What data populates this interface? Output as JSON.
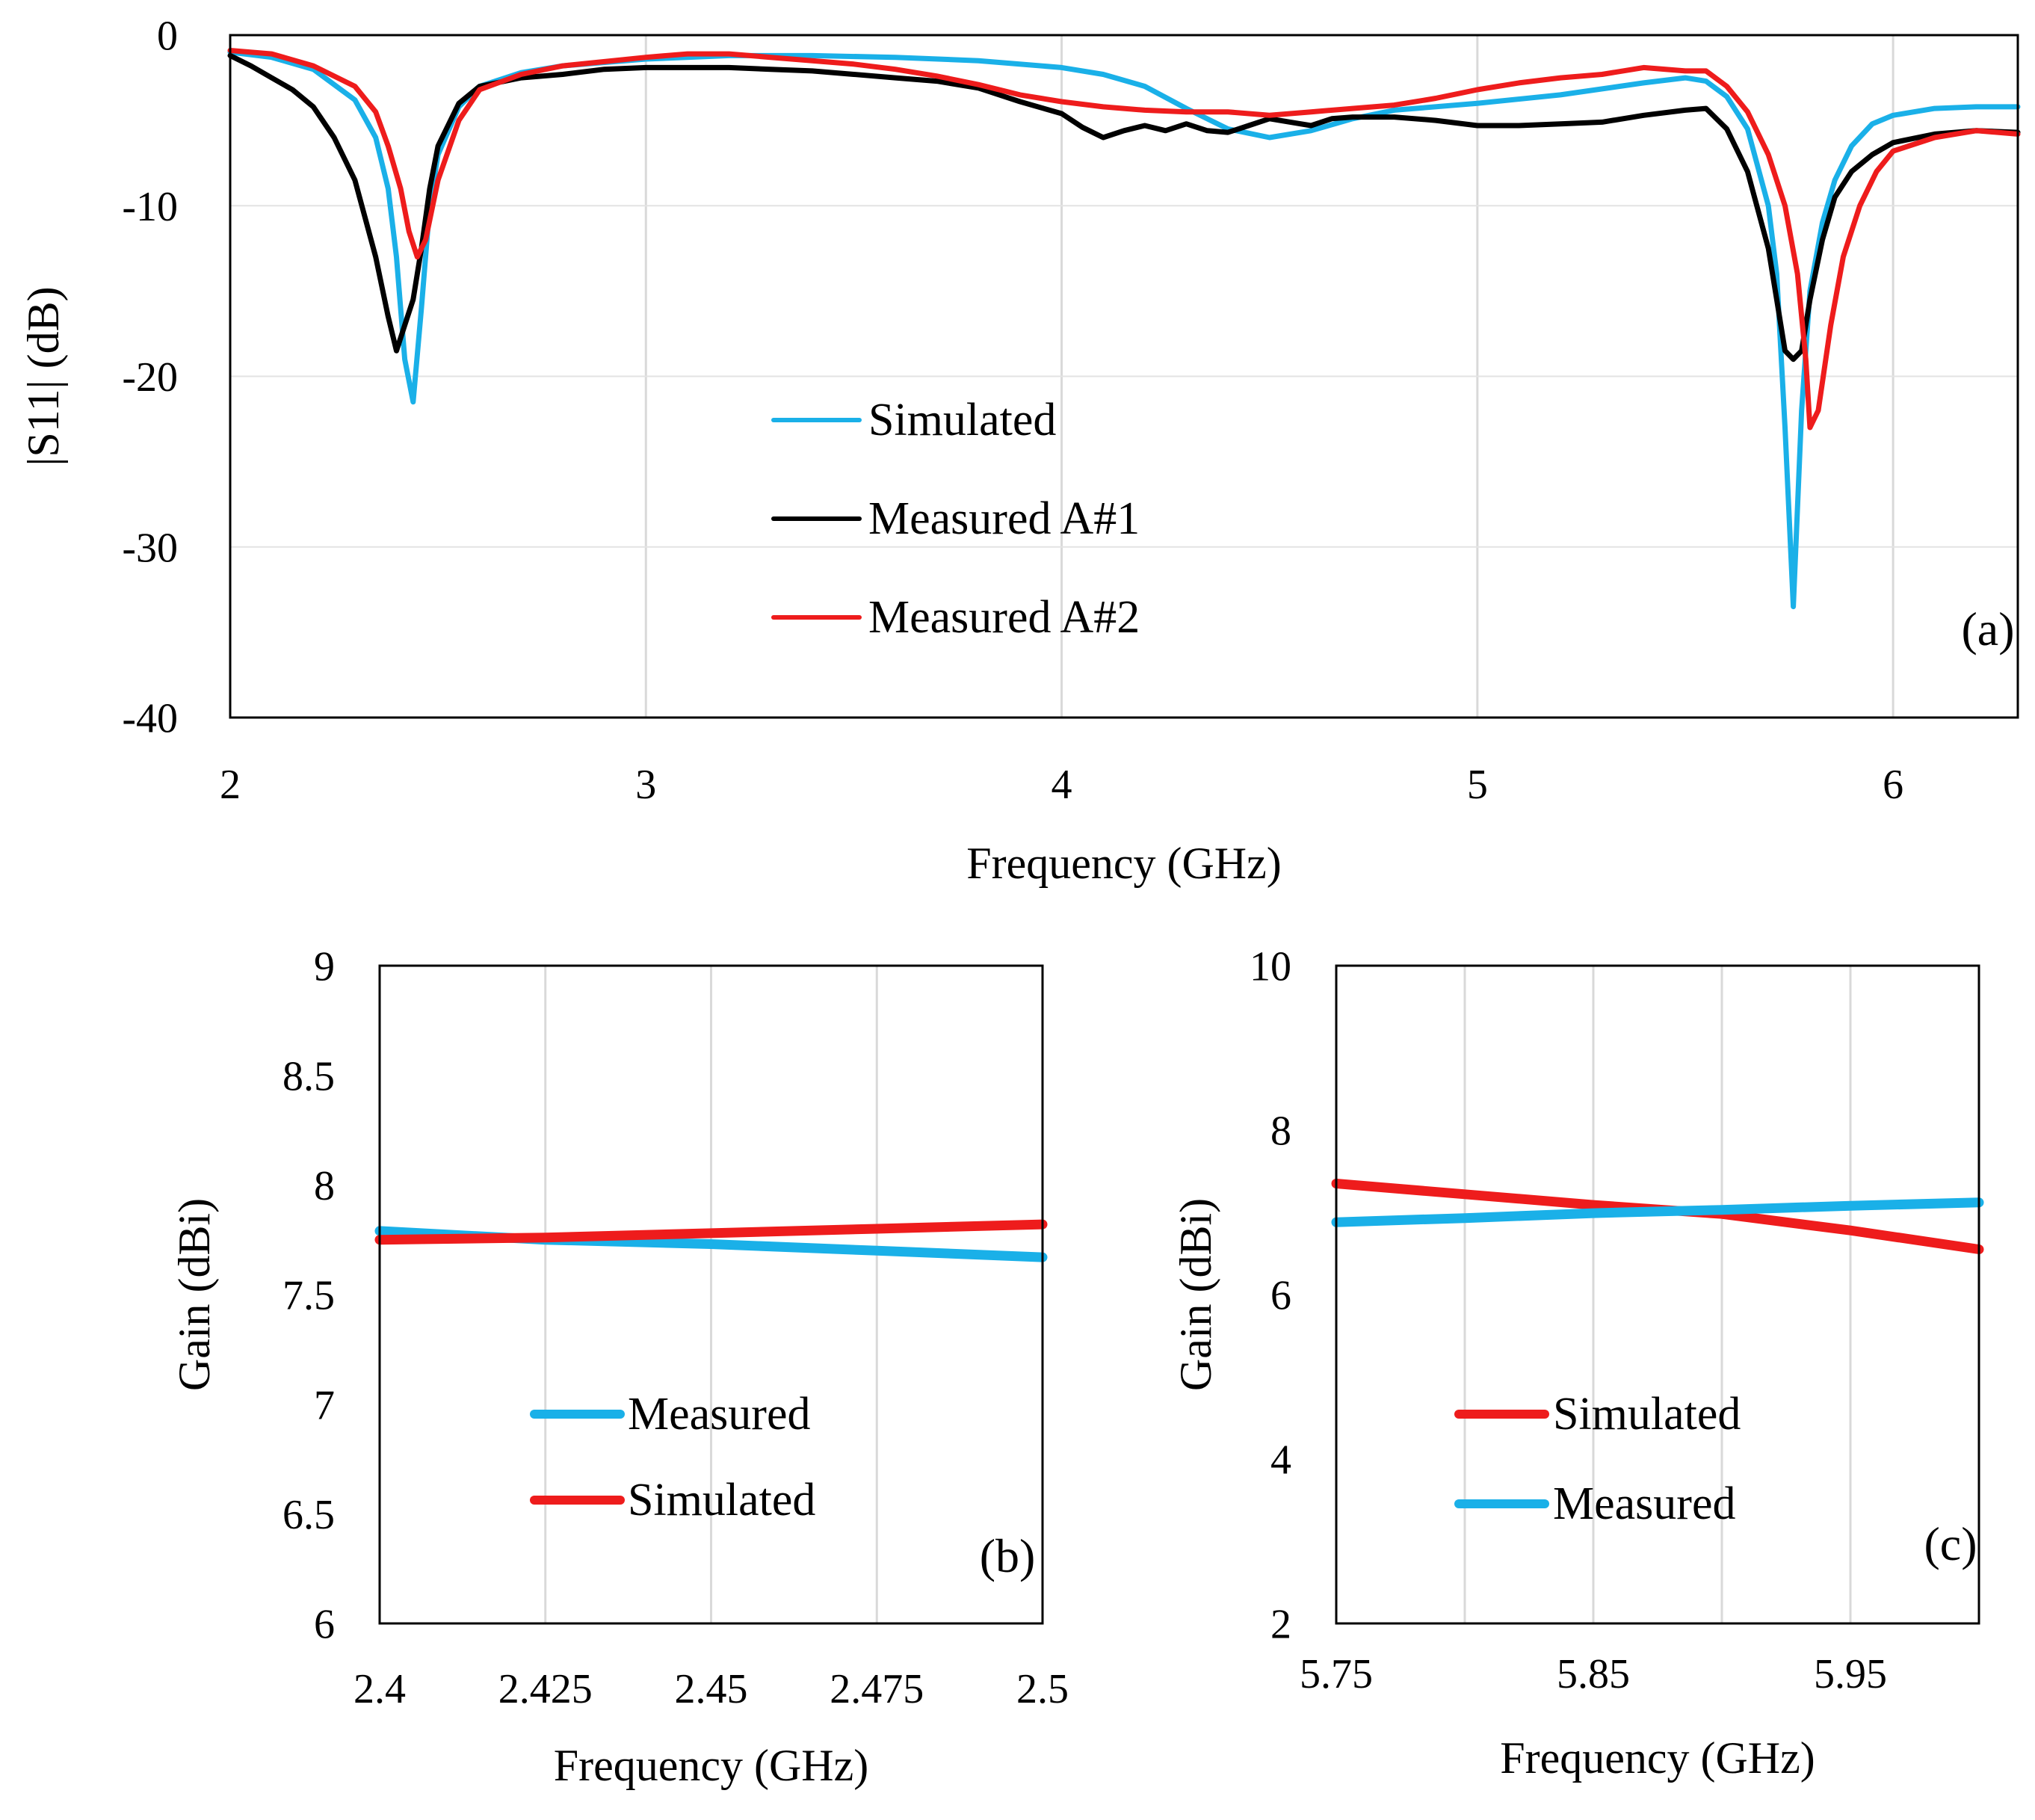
{
  "chart_data": [
    {
      "id": "a",
      "type": "line",
      "panel_label": "(a)",
      "title": "",
      "xlabel": "Frequency (GHz)",
      "ylabel": "|S11| (dB)",
      "xlim": [
        2,
        6.3
      ],
      "ylim": [
        -40,
        0
      ],
      "xticks": [
        2,
        3,
        4,
        5,
        6
      ],
      "yticks": [
        0,
        -10,
        -20,
        -30,
        -40
      ],
      "xtick_labels": [
        "2",
        "3",
        "4",
        "5",
        "6"
      ],
      "ytick_labels": [
        "0",
        "-10",
        "-20",
        "-30",
        "-40"
      ],
      "grid": "vertical",
      "legend_position": "center",
      "series": [
        {
          "name": "Simulated",
          "color": "#1ab0e8",
          "x": [
            2.0,
            2.1,
            2.2,
            2.3,
            2.35,
            2.38,
            2.4,
            2.42,
            2.44,
            2.46,
            2.48,
            2.5,
            2.55,
            2.6,
            2.7,
            2.8,
            3.0,
            3.2,
            3.4,
            3.6,
            3.8,
            4.0,
            4.1,
            4.2,
            4.3,
            4.4,
            4.5,
            4.6,
            4.7,
            4.8,
            5.0,
            5.2,
            5.4,
            5.5,
            5.55,
            5.6,
            5.65,
            5.7,
            5.72,
            5.74,
            5.76,
            5.78,
            5.8,
            5.83,
            5.86,
            5.9,
            5.95,
            6.0,
            6.1,
            6.2,
            6.3
          ],
          "values": [
            -1.0,
            -1.3,
            -2.0,
            -3.8,
            -6.0,
            -9.0,
            -13.0,
            -19.0,
            -21.5,
            -16.0,
            -10.0,
            -7.0,
            -4.2,
            -3.0,
            -2.2,
            -1.8,
            -1.4,
            -1.2,
            -1.2,
            -1.3,
            -1.5,
            -1.9,
            -2.3,
            -3.0,
            -4.3,
            -5.5,
            -6.0,
            -5.6,
            -4.9,
            -4.4,
            -4.0,
            -3.5,
            -2.8,
            -2.5,
            -2.7,
            -3.6,
            -5.5,
            -10.0,
            -14.0,
            -23.0,
            -33.5,
            -22.0,
            -15.0,
            -11.0,
            -8.5,
            -6.5,
            -5.2,
            -4.7,
            -4.3,
            -4.2,
            -4.2
          ]
        },
        {
          "name": "Measured A#1",
          "color": "#000000",
          "x": [
            2.0,
            2.05,
            2.1,
            2.15,
            2.2,
            2.25,
            2.3,
            2.35,
            2.38,
            2.4,
            2.42,
            2.44,
            2.46,
            2.48,
            2.5,
            2.55,
            2.6,
            2.7,
            2.8,
            2.9,
            3.0,
            3.1,
            3.2,
            3.3,
            3.4,
            3.5,
            3.6,
            3.7,
            3.8,
            3.9,
            4.0,
            4.05,
            4.1,
            4.15,
            4.2,
            4.25,
            4.3,
            4.35,
            4.4,
            4.45,
            4.5,
            4.55,
            4.6,
            4.65,
            4.7,
            4.8,
            4.9,
            5.0,
            5.1,
            5.2,
            5.3,
            5.4,
            5.5,
            5.55,
            5.6,
            5.65,
            5.7,
            5.72,
            5.74,
            5.76,
            5.78,
            5.8,
            5.83,
            5.86,
            5.9,
            5.95,
            6.0,
            6.1,
            6.2,
            6.3
          ],
          "values": [
            -1.2,
            -1.8,
            -2.5,
            -3.2,
            -4.2,
            -6.0,
            -8.5,
            -13.0,
            -16.5,
            -18.5,
            -17.0,
            -15.5,
            -12.5,
            -9.0,
            -6.5,
            -4.0,
            -3.0,
            -2.5,
            -2.3,
            -2.0,
            -1.9,
            -1.9,
            -1.9,
            -2.0,
            -2.1,
            -2.3,
            -2.5,
            -2.7,
            -3.1,
            -3.9,
            -4.6,
            -5.4,
            -6.0,
            -5.6,
            -5.3,
            -5.6,
            -5.2,
            -5.6,
            -5.7,
            -5.3,
            -4.9,
            -5.1,
            -5.3,
            -4.9,
            -4.8,
            -4.8,
            -5.0,
            -5.3,
            -5.3,
            -5.2,
            -5.1,
            -4.7,
            -4.4,
            -4.3,
            -5.5,
            -8.0,
            -12.5,
            -15.5,
            -18.5,
            -19.0,
            -18.5,
            -15.5,
            -12.0,
            -9.5,
            -8.0,
            -7.0,
            -6.3,
            -5.8,
            -5.6,
            -5.7
          ]
        },
        {
          "name": "Measured A#2",
          "color": "#ee1c1c",
          "x": [
            2.0,
            2.1,
            2.2,
            2.3,
            2.35,
            2.38,
            2.41,
            2.43,
            2.45,
            2.47,
            2.5,
            2.55,
            2.6,
            2.7,
            2.8,
            3.0,
            3.1,
            3.2,
            3.3,
            3.4,
            3.5,
            3.6,
            3.7,
            3.8,
            3.9,
            4.0,
            4.1,
            4.2,
            4.3,
            4.4,
            4.5,
            4.6,
            4.7,
            4.8,
            4.9,
            5.0,
            5.1,
            5.2,
            5.3,
            5.4,
            5.5,
            5.55,
            5.6,
            5.65,
            5.7,
            5.74,
            5.77,
            5.79,
            5.8,
            5.82,
            5.85,
            5.88,
            5.92,
            5.96,
            6.0,
            6.1,
            6.2,
            6.3
          ],
          "values": [
            -0.9,
            -1.1,
            -1.8,
            -3.0,
            -4.5,
            -6.5,
            -9.0,
            -11.5,
            -13.0,
            -12.0,
            -8.5,
            -5.0,
            -3.2,
            -2.3,
            -1.8,
            -1.3,
            -1.1,
            -1.1,
            -1.3,
            -1.5,
            -1.7,
            -2.0,
            -2.4,
            -2.9,
            -3.5,
            -3.9,
            -4.2,
            -4.4,
            -4.5,
            -4.5,
            -4.7,
            -4.5,
            -4.3,
            -4.1,
            -3.7,
            -3.2,
            -2.8,
            -2.5,
            -2.3,
            -1.9,
            -2.1,
            -2.1,
            -3.0,
            -4.5,
            -7.0,
            -10.0,
            -14.0,
            -19.0,
            -23.0,
            -22.0,
            -17.0,
            -13.0,
            -10.0,
            -8.0,
            -6.8,
            -6.0,
            -5.6,
            -5.8
          ]
        }
      ],
      "legend": [
        "Simulated",
        "Measured A#1",
        "Measured A#2"
      ]
    },
    {
      "id": "b",
      "type": "line",
      "panel_label": "(b)",
      "title": "",
      "xlabel": "Frequency (GHz)",
      "ylabel": "Gain (dBi)",
      "xlim": [
        2.4,
        2.5
      ],
      "ylim": [
        6,
        9
      ],
      "xticks": [
        2.4,
        2.425,
        2.45,
        2.475,
        2.5
      ],
      "yticks": [
        9,
        8.5,
        8,
        7.5,
        7,
        6.5,
        6
      ],
      "xtick_labels": [
        "2.4",
        "2.425",
        "2.45",
        "2.475",
        "2.5"
      ],
      "ytick_labels": [
        "9",
        "8.5",
        "8",
        "7.5",
        "7",
        "6.5",
        "6"
      ],
      "grid": "vertical",
      "legend_position": "center",
      "series": [
        {
          "name": "Measured",
          "color": "#1ab0e8",
          "x": [
            2.4,
            2.425,
            2.45,
            2.475,
            2.5
          ],
          "values": [
            7.79,
            7.75,
            7.73,
            7.7,
            7.67
          ]
        },
        {
          "name": "Simulated",
          "color": "#ee1c1c",
          "x": [
            2.4,
            2.425,
            2.45,
            2.475,
            2.5
          ],
          "values": [
            7.75,
            7.76,
            7.78,
            7.8,
            7.82
          ]
        }
      ],
      "legend": [
        "Measured",
        "Simulated"
      ]
    },
    {
      "id": "c",
      "type": "line",
      "panel_label": "(c)",
      "title": "",
      "xlabel": "Frequency (GHz)",
      "ylabel": "Gain (dBi)",
      "xlim": [
        5.75,
        6.0
      ],
      "ylim": [
        2,
        10
      ],
      "xticks": [
        5.75,
        5.8,
        5.85,
        5.9,
        5.95,
        6.0
      ],
      "yticks": [
        10,
        8,
        6,
        4,
        2
      ],
      "xtick_labels": [
        "5.75",
        "",
        "5.85",
        "",
        "5.95",
        ""
      ],
      "ytick_labels": [
        "10",
        "8",
        "6",
        "4",
        "2"
      ],
      "grid": "vertical",
      "legend_position": "center",
      "series": [
        {
          "name": "Simulated",
          "color": "#ee1c1c",
          "x": [
            5.75,
            5.8,
            5.85,
            5.9,
            5.95,
            6.0
          ],
          "values": [
            7.35,
            7.22,
            7.09,
            6.98,
            6.78,
            6.55
          ]
        },
        {
          "name": "Measured",
          "color": "#1ab0e8",
          "x": [
            5.75,
            5.8,
            5.85,
            5.9,
            5.95,
            6.0
          ],
          "values": [
            6.88,
            6.93,
            6.99,
            7.03,
            7.08,
            7.12
          ]
        }
      ],
      "legend": [
        "Simulated",
        "Measured"
      ]
    }
  ]
}
